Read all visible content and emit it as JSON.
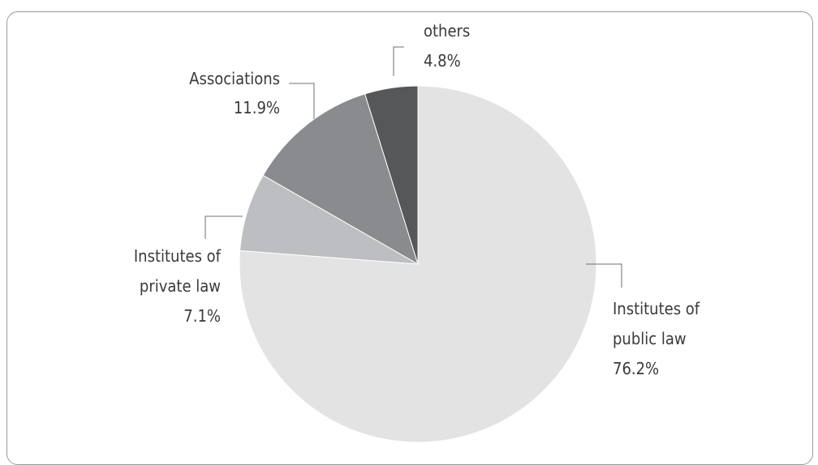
{
  "chart_data": {
    "type": "pie",
    "start_angle_deg": 0,
    "direction": "clockwise",
    "slices": [
      {
        "name_lines": [
          "Institutes of",
          "public law"
        ],
        "value_label": "76.2%",
        "value": 76.2,
        "color": "#e3e3e4"
      },
      {
        "name_lines": [
          "Institutes of",
          "private law"
        ],
        "value_label": "7.1%",
        "value": 7.1,
        "color": "#bdbec1"
      },
      {
        "name_lines": [
          "Associations"
        ],
        "value_label": "11.9%",
        "value": 11.9,
        "color": "#8a8b8e"
      },
      {
        "name_lines": [
          "others"
        ],
        "value_label": "4.8%",
        "value": 4.8,
        "color": "#565759"
      }
    ],
    "slice_border_color": "#ffffff"
  }
}
